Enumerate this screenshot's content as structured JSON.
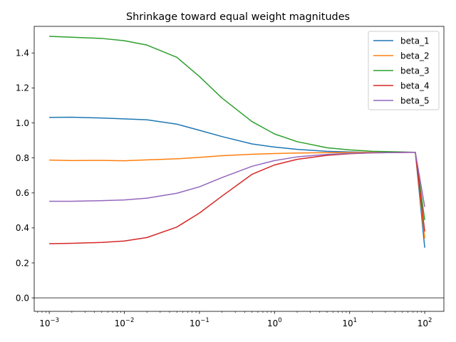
{
  "chart_data": {
    "type": "line",
    "title": "Shrinkage toward equal weight magnitudes",
    "xlabel": "",
    "ylabel": "",
    "xscale": "log",
    "xlim": [
      0.00063,
      180
    ],
    "ylim": [
      -0.077,
      1.552
    ],
    "x_ticks": [
      {
        "value": 0.001,
        "base": "10",
        "exp": "−3"
      },
      {
        "value": 0.01,
        "base": "10",
        "exp": "−2"
      },
      {
        "value": 0.1,
        "base": "10",
        "exp": "−1"
      },
      {
        "value": 1,
        "base": "10",
        "exp": "0"
      },
      {
        "value": 10,
        "base": "10",
        "exp": "1"
      },
      {
        "value": 100,
        "base": "10",
        "exp": "2"
      }
    ],
    "y_ticks": [
      "0.0",
      "0.2",
      "0.4",
      "0.6",
      "0.8",
      "1.0",
      "1.2",
      "1.4"
    ],
    "reference_line": {
      "y": 0,
      "color": "#808080"
    },
    "grid": false,
    "legend_position": "top-right",
    "x": [
      0.001,
      0.002,
      0.005,
      0.01,
      0.02,
      0.05,
      0.1,
      0.2,
      0.5,
      1,
      2,
      5,
      10,
      20,
      50,
      75,
      100
    ],
    "series": [
      {
        "name": "beta_1",
        "color": "#1f77b4",
        "values": [
          1.032,
          1.033,
          1.028,
          1.023,
          1.018,
          0.993,
          0.958,
          0.922,
          0.88,
          0.862,
          0.849,
          0.838,
          0.834,
          0.832,
          0.832,
          0.832,
          0.287
        ]
      },
      {
        "name": "beta_2",
        "color": "#ff7f0e",
        "values": [
          0.788,
          0.785,
          0.786,
          0.784,
          0.789,
          0.795,
          0.803,
          0.813,
          0.821,
          0.825,
          0.828,
          0.83,
          0.831,
          0.832,
          0.832,
          0.832,
          0.34
        ]
      },
      {
        "name": "beta_3",
        "color": "#2ca02c",
        "values": [
          1.495,
          1.49,
          1.483,
          1.47,
          1.445,
          1.375,
          1.265,
          1.142,
          1.008,
          0.937,
          0.893,
          0.858,
          0.846,
          0.838,
          0.834,
          0.832,
          0.445
        ]
      },
      {
        "name": "beta_4",
        "color": "#d62728",
        "values": [
          0.31,
          0.312,
          0.317,
          0.325,
          0.345,
          0.405,
          0.485,
          0.582,
          0.706,
          0.76,
          0.792,
          0.815,
          0.824,
          0.829,
          0.831,
          0.832,
          0.38
        ]
      },
      {
        "name": "beta_5",
        "color": "#9467bd",
        "values": [
          0.552,
          0.552,
          0.556,
          0.56,
          0.57,
          0.598,
          0.635,
          0.688,
          0.752,
          0.785,
          0.806,
          0.82,
          0.826,
          0.829,
          0.831,
          0.832,
          0.52
        ]
      }
    ]
  }
}
